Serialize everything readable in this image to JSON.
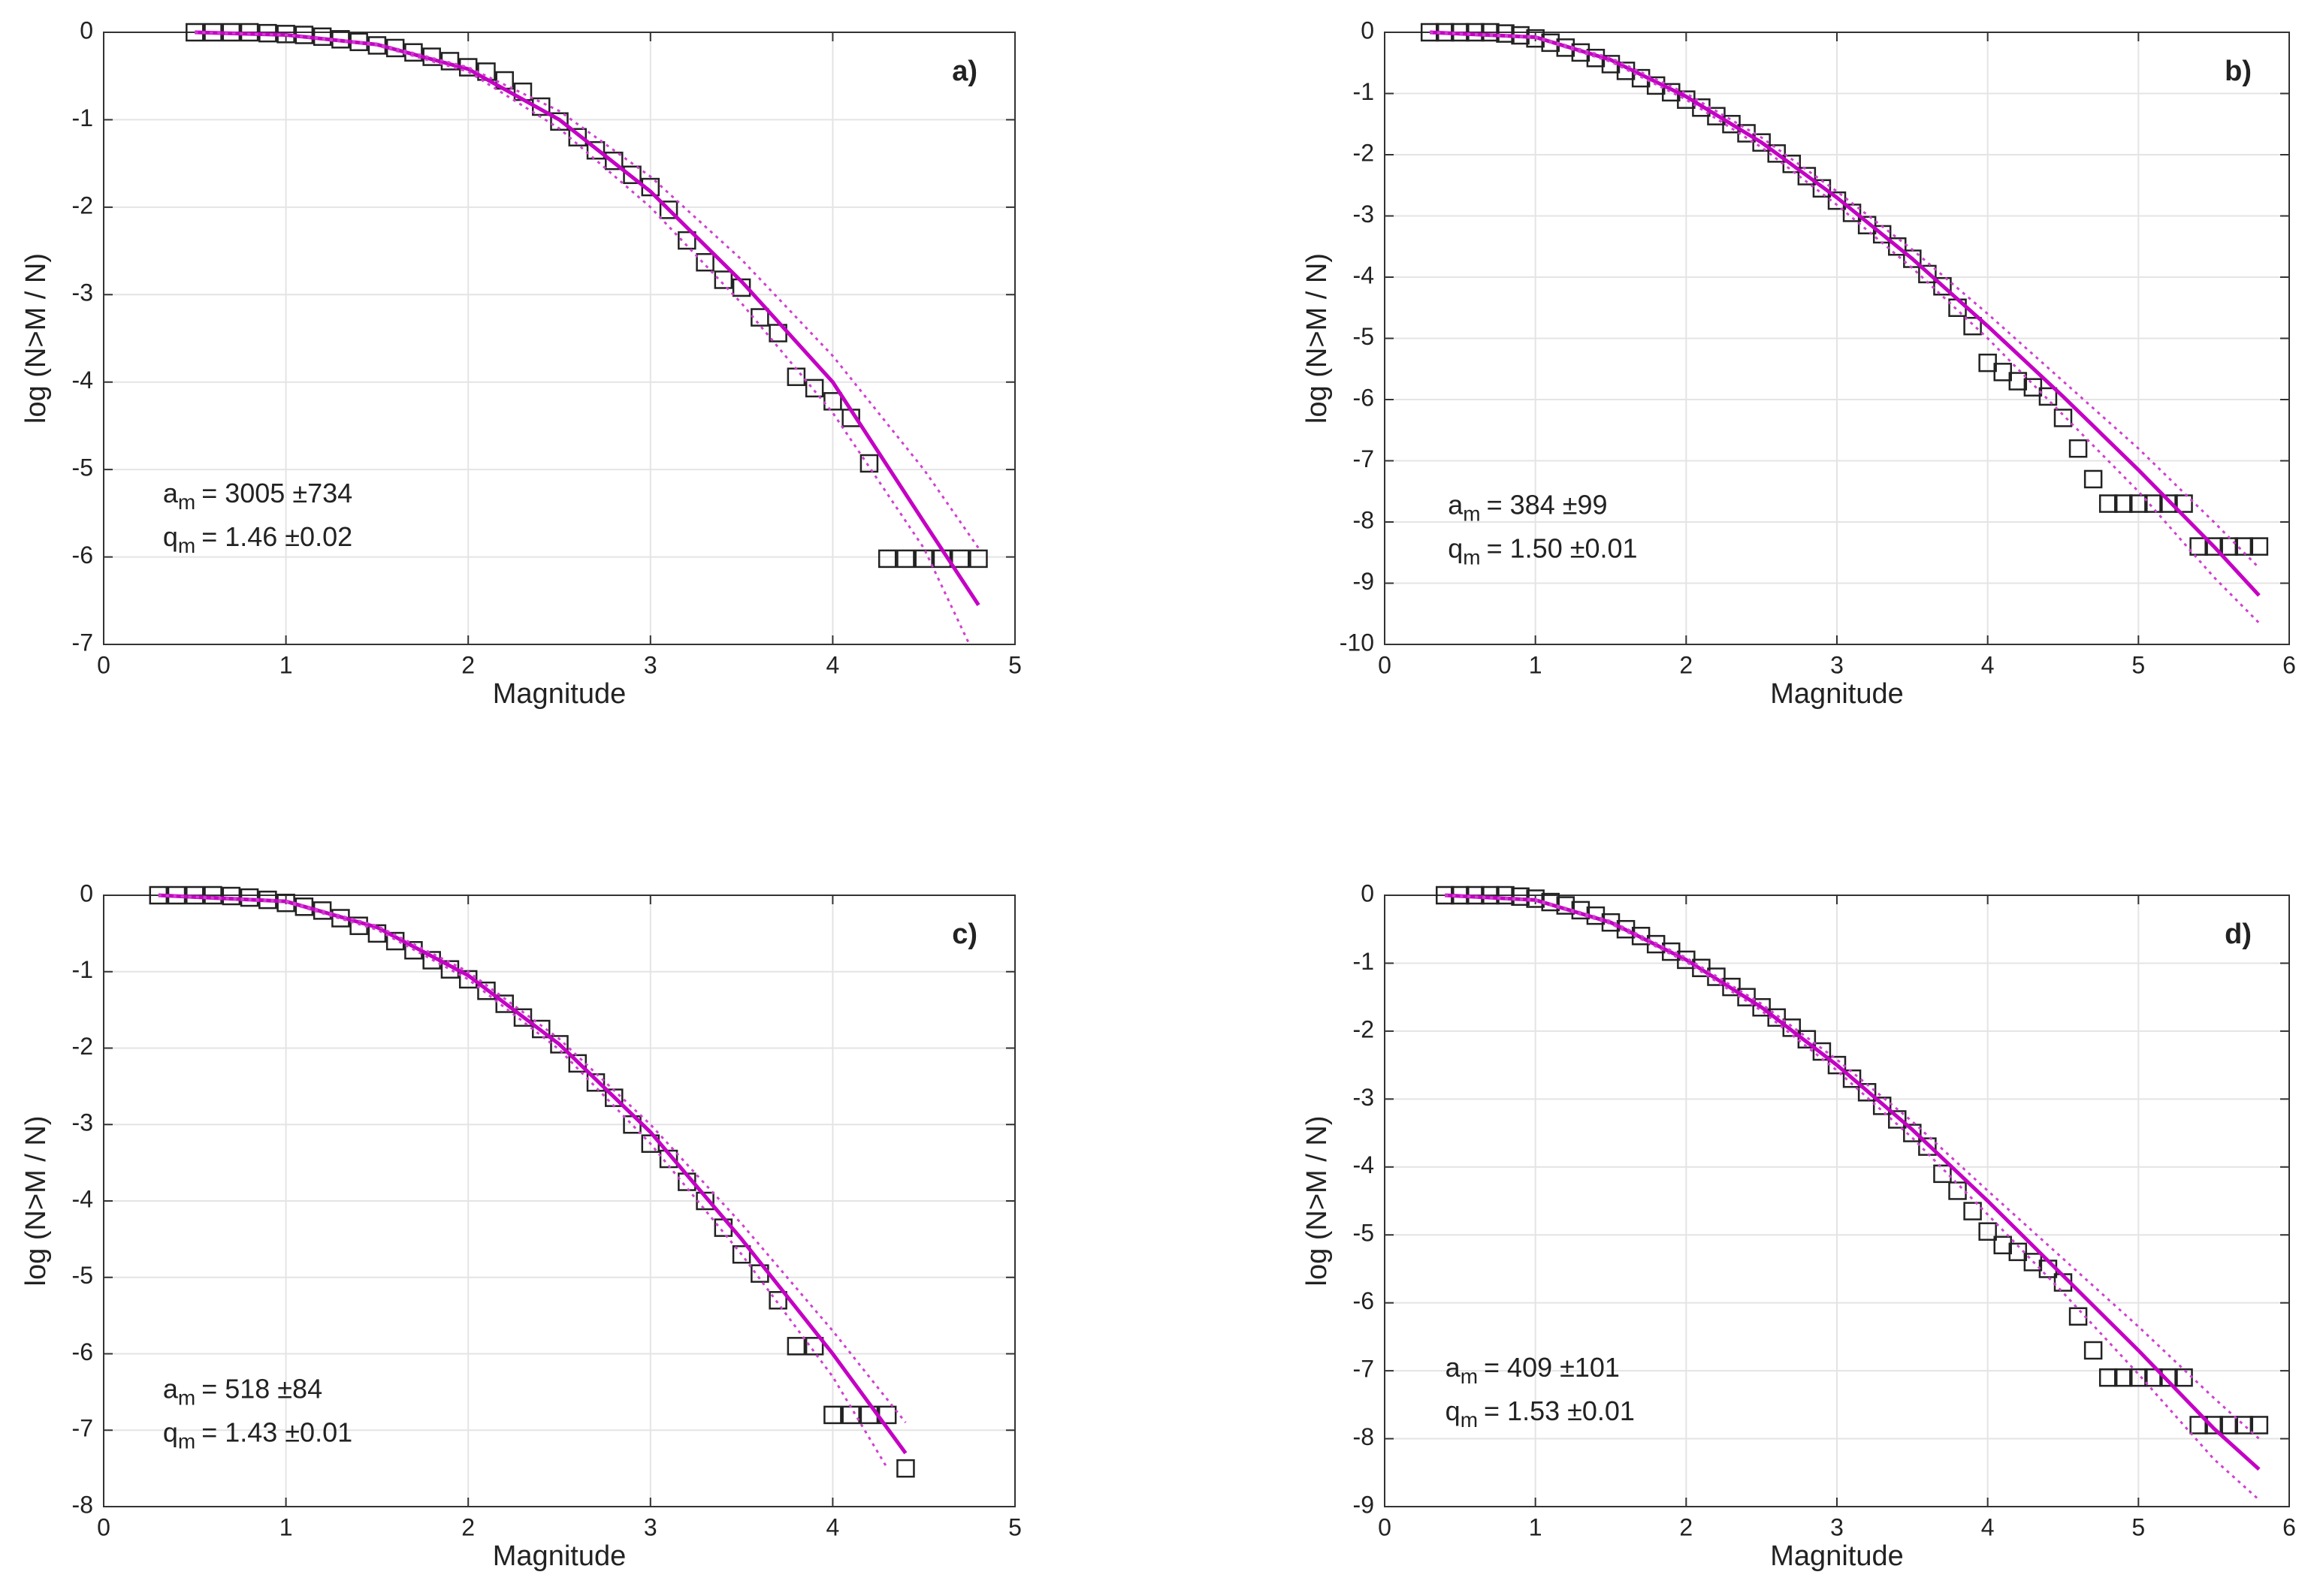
{
  "chart_data": [
    {
      "type": "scatter",
      "panel_label": "a)",
      "xlabel": "Magnitude",
      "ylabel": "log (N>M / N)",
      "xlim": [
        0,
        5
      ],
      "ylim": [
        -7,
        0
      ],
      "xticks": [
        0,
        1,
        2,
        3,
        4,
        5
      ],
      "yticks": [
        0,
        -1,
        -2,
        -3,
        -4,
        -5,
        -6,
        -7
      ],
      "grid": true,
      "annotations": [
        {
          "symbol": "a",
          "subscript": "m",
          "text": "= 3005 ±734"
        },
        {
          "symbol": "q",
          "subscript": "m",
          "text": "= 1.46 ±0.02"
        }
      ],
      "series": [
        {
          "marker": "square",
          "color": "#222222",
          "x": [
            0.5,
            0.6,
            0.7,
            0.8,
            0.9,
            1.0,
            1.1,
            1.2,
            1.3,
            1.4,
            1.5,
            1.6,
            1.7,
            1.8,
            1.9,
            2.0,
            2.1,
            2.2,
            2.3,
            2.4,
            2.5,
            2.6,
            2.7,
            2.8,
            2.9,
            3.0,
            3.1,
            3.2,
            3.3,
            3.4,
            3.5,
            3.6,
            3.7,
            3.8,
            3.9,
            4.0,
            4.1,
            4.2,
            4.3,
            4.4,
            4.5,
            4.6,
            4.7,
            4.8
          ],
          "values": [
            0,
            0,
            0,
            0,
            -0.01,
            -0.02,
            -0.03,
            -0.05,
            -0.08,
            -0.11,
            -0.15,
            -0.18,
            -0.23,
            -0.28,
            -0.33,
            -0.4,
            -0.45,
            -0.55,
            -0.68,
            -0.85,
            -1.02,
            -1.2,
            -1.35,
            -1.47,
            -1.63,
            -1.77,
            -2.03,
            -2.38,
            -2.63,
            -2.83,
            -2.92,
            -3.26,
            -3.44,
            -3.94,
            -4.07,
            -4.22,
            -4.41,
            -4.93,
            -6.02,
            -6.02,
            -6.02,
            -6.02,
            -6.02,
            -6.02
          ]
        },
        {
          "style": "solid",
          "color": "#c400c4",
          "x": [
            0.5,
            1,
            1.5,
            2,
            2.5,
            3,
            3.5,
            4,
            4.5,
            4.8
          ],
          "values": [
            0,
            -0.03,
            -0.14,
            -0.42,
            -1.0,
            -1.82,
            -2.85,
            -4.0,
            -5.6,
            -6.55
          ]
        },
        {
          "style": "dotted",
          "color": "#d040d0",
          "x": [
            0.5,
            1,
            1.5,
            2,
            2.5,
            3,
            3.5,
            4,
            4.5,
            4.8
          ],
          "values": [
            0,
            -0.03,
            -0.13,
            -0.4,
            -0.9,
            -1.65,
            -2.6,
            -3.7,
            -5.0,
            -5.9
          ]
        },
        {
          "style": "dotted",
          "color": "#d040d0",
          "x": [
            0.5,
            1,
            1.5,
            2,
            2.5,
            3,
            3.5,
            4,
            4.5,
            4.75
          ],
          "values": [
            0,
            -0.03,
            -0.15,
            -0.45,
            -1.1,
            -2.0,
            -3.1,
            -4.35,
            -5.9,
            -7
          ]
        }
      ]
    },
    {
      "type": "scatter",
      "panel_label": "b)",
      "xlabel": "Magnitude",
      "ylabel": "log (N>M / N)",
      "xlim": [
        0,
        6
      ],
      "ylim": [
        -10,
        0
      ],
      "xticks": [
        0,
        1,
        2,
        3,
        4,
        5,
        6
      ],
      "yticks": [
        0,
        -1,
        -2,
        -3,
        -4,
        -5,
        -6,
        -7,
        -8,
        -9,
        -10
      ],
      "grid": true,
      "annotations": [
        {
          "symbol": "a",
          "subscript": "m",
          "text": "= 384 ±99"
        },
        {
          "symbol": "q",
          "subscript": "m",
          "text": "= 1.50 ±0.01"
        }
      ],
      "series": [
        {
          "marker": "square",
          "color": "#222222",
          "x": [
            0.3,
            0.4,
            0.5,
            0.6,
            0.7,
            0.8,
            0.9,
            1.0,
            1.1,
            1.2,
            1.3,
            1.4,
            1.5,
            1.6,
            1.7,
            1.8,
            1.9,
            2.0,
            2.1,
            2.2,
            2.3,
            2.4,
            2.5,
            2.6,
            2.7,
            2.8,
            2.9,
            3.0,
            3.1,
            3.2,
            3.3,
            3.4,
            3.5,
            3.6,
            3.7,
            3.8,
            3.9,
            4.0,
            4.1,
            4.2,
            4.3,
            4.4,
            4.5,
            4.6,
            4.7,
            4.8,
            4.9,
            5.0,
            5.1,
            5.2,
            5.3,
            5.4,
            5.5,
            5.6,
            5.7,
            5.8
          ],
          "values": [
            0,
            0,
            0,
            0,
            0,
            -0.02,
            -0.05,
            -0.1,
            -0.17,
            -0.25,
            -0.33,
            -0.42,
            -0.52,
            -0.63,
            -0.75,
            -0.87,
            -0.98,
            -1.1,
            -1.23,
            -1.37,
            -1.5,
            -1.65,
            -1.8,
            -1.98,
            -2.15,
            -2.35,
            -2.55,
            -2.75,
            -2.95,
            -3.15,
            -3.3,
            -3.5,
            -3.7,
            -3.95,
            -4.15,
            -4.5,
            -4.8,
            -5.4,
            -5.55,
            -5.7,
            -5.8,
            -5.95,
            -6.3,
            -6.8,
            -7.3,
            -7.7,
            -7.7,
            -7.7,
            -7.7,
            -7.7,
            -7.7,
            -8.4,
            -8.4,
            -8.4,
            -8.4,
            -8.4
          ]
        },
        {
          "style": "solid",
          "color": "#c400c4",
          "x": [
            0.3,
            1,
            1.5,
            2,
            2.5,
            3,
            3.5,
            4,
            4.5,
            5,
            5.5,
            5.8
          ],
          "values": [
            0,
            -0.08,
            -0.45,
            -1.05,
            -1.8,
            -2.7,
            -3.7,
            -4.8,
            -5.95,
            -7.15,
            -8.4,
            -9.2
          ]
        },
        {
          "style": "dotted",
          "color": "#d040d0",
          "x": [
            0.3,
            1,
            1.5,
            2,
            2.5,
            3,
            3.5,
            4,
            4.5,
            5,
            5.5,
            5.8
          ],
          "values": [
            0,
            -0.07,
            -0.42,
            -1.0,
            -1.72,
            -2.6,
            -3.55,
            -4.6,
            -5.7,
            -6.8,
            -8.0,
            -8.75
          ]
        },
        {
          "style": "dotted",
          "color": "#d040d0",
          "x": [
            0.3,
            1,
            1.5,
            2,
            2.5,
            3,
            3.5,
            4,
            4.5,
            5,
            5.5,
            5.8
          ],
          "values": [
            0,
            -0.09,
            -0.48,
            -1.1,
            -1.88,
            -2.82,
            -3.85,
            -5.0,
            -6.25,
            -7.5,
            -8.9,
            -9.65
          ]
        }
      ]
    },
    {
      "type": "scatter",
      "panel_label": "c)",
      "xlabel": "Magnitude",
      "ylabel": "log (N>M / N)",
      "xlim": [
        0,
        5
      ],
      "ylim": [
        -8,
        0
      ],
      "xticks": [
        0,
        1,
        2,
        3,
        4,
        5
      ],
      "yticks": [
        0,
        -1,
        -2,
        -3,
        -4,
        -5,
        -6,
        -7,
        -8
      ],
      "grid": true,
      "annotations": [
        {
          "symbol": "a",
          "subscript": "m",
          "text": "= 518 ±84"
        },
        {
          "symbol": "q",
          "subscript": "m",
          "text": "= 1.43 ±0.01"
        }
      ],
      "series": [
        {
          "marker": "square",
          "color": "#222222",
          "x": [
            0.3,
            0.4,
            0.5,
            0.6,
            0.7,
            0.8,
            0.9,
            1.0,
            1.1,
            1.2,
            1.3,
            1.4,
            1.5,
            1.6,
            1.7,
            1.8,
            1.9,
            2.0,
            2.1,
            2.2,
            2.3,
            2.4,
            2.5,
            2.6,
            2.7,
            2.8,
            2.9,
            3.0,
            3.1,
            3.2,
            3.3,
            3.4,
            3.5,
            3.6,
            3.7,
            3.8,
            3.9,
            4.0,
            4.1,
            4.2,
            4.3,
            4.4
          ],
          "values": [
            0,
            0,
            0,
            0,
            -0.01,
            -0.03,
            -0.06,
            -0.1,
            -0.15,
            -0.2,
            -0.3,
            -0.4,
            -0.5,
            -0.6,
            -0.72,
            -0.85,
            -0.97,
            -1.1,
            -1.25,
            -1.42,
            -1.6,
            -1.75,
            -1.95,
            -2.2,
            -2.45,
            -2.65,
            -3.0,
            -3.25,
            -3.45,
            -3.75,
            -4.0,
            -4.35,
            -4.7,
            -4.95,
            -5.3,
            -5.9,
            -5.9,
            -6.8,
            -6.8,
            -6.8,
            -6.8,
            -7.5
          ]
        },
        {
          "style": "solid",
          "color": "#c400c4",
          "x": [
            0.3,
            1,
            1.5,
            2,
            2.5,
            3,
            3.5,
            4,
            4.4
          ],
          "values": [
            0,
            -0.08,
            -0.42,
            -1.05,
            -1.95,
            -3.1,
            -4.5,
            -6.0,
            -7.3
          ]
        },
        {
          "style": "dotted",
          "color": "#d040d0",
          "x": [
            0.3,
            1,
            1.5,
            2,
            2.5,
            3,
            3.5,
            4,
            4.4
          ],
          "values": [
            0,
            -0.07,
            -0.4,
            -1.0,
            -1.88,
            -3.0,
            -4.3,
            -5.7,
            -6.9
          ]
        },
        {
          "style": "dotted",
          "color": "#d040d0",
          "x": [
            0.3,
            1,
            1.5,
            2,
            2.5,
            3,
            3.5,
            4,
            4.3
          ],
          "values": [
            0,
            -0.09,
            -0.45,
            -1.1,
            -2.02,
            -3.25,
            -4.7,
            -6.3,
            -7.5
          ]
        }
      ]
    },
    {
      "type": "scatter",
      "panel_label": "d)",
      "xlabel": "Magnitude",
      "ylabel": "log (N>M / N)",
      "xlim": [
        0,
        6
      ],
      "ylim": [
        -9,
        0
      ],
      "xticks": [
        0,
        1,
        2,
        3,
        4,
        5,
        6
      ],
      "yticks": [
        0,
        -1,
        -2,
        -3,
        -4,
        -5,
        -6,
        -7,
        -8,
        -9
      ],
      "grid": true,
      "annotations": [
        {
          "symbol": "a",
          "subscript": "m",
          "text": "= 409 ±101"
        },
        {
          "symbol": "q",
          "subscript": "m",
          "text": "= 1.53 ±0.01"
        }
      ],
      "series": [
        {
          "marker": "square",
          "color": "#222222",
          "x": [
            0.4,
            0.5,
            0.6,
            0.7,
            0.8,
            0.9,
            1.0,
            1.1,
            1.2,
            1.3,
            1.4,
            1.5,
            1.6,
            1.7,
            1.8,
            1.9,
            2.0,
            2.1,
            2.2,
            2.3,
            2.4,
            2.5,
            2.6,
            2.7,
            2.8,
            2.9,
            3.0,
            3.1,
            3.2,
            3.3,
            3.4,
            3.5,
            3.6,
            3.7,
            3.8,
            3.9,
            4.0,
            4.1,
            4.2,
            4.3,
            4.4,
            4.5,
            4.6,
            4.7,
            4.8,
            4.9,
            5.0,
            5.1,
            5.2,
            5.3,
            5.4,
            5.5,
            5.6,
            5.7,
            5.8
          ],
          "values": [
            0,
            0,
            0,
            0,
            0,
            -0.02,
            -0.05,
            -0.1,
            -0.15,
            -0.22,
            -0.3,
            -0.4,
            -0.5,
            -0.6,
            -0.72,
            -0.83,
            -0.95,
            -1.07,
            -1.2,
            -1.35,
            -1.5,
            -1.65,
            -1.8,
            -1.95,
            -2.12,
            -2.3,
            -2.5,
            -2.7,
            -2.9,
            -3.1,
            -3.3,
            -3.5,
            -3.7,
            -4.1,
            -4.35,
            -4.65,
            -4.95,
            -5.15,
            -5.25,
            -5.4,
            -5.5,
            -5.7,
            -6.2,
            -6.7,
            -7.1,
            -7.1,
            -7.1,
            -7.1,
            -7.1,
            -7.1,
            -7.8,
            -7.8,
            -7.8,
            -7.8,
            -7.8
          ]
        },
        {
          "style": "solid",
          "color": "#c400c4",
          "x": [
            0.4,
            1,
            1.5,
            2,
            2.5,
            3,
            3.5,
            4,
            4.5,
            5,
            5.5,
            5.8
          ],
          "values": [
            0,
            -0.07,
            -0.4,
            -0.95,
            -1.65,
            -2.5,
            -3.45,
            -4.5,
            -5.6,
            -6.7,
            -7.85,
            -8.45
          ]
        },
        {
          "style": "dotted",
          "color": "#d040d0",
          "x": [
            0.4,
            1,
            1.5,
            2,
            2.5,
            3,
            3.5,
            4,
            4.5,
            5,
            5.5,
            5.8
          ],
          "values": [
            0,
            -0.06,
            -0.38,
            -0.92,
            -1.6,
            -2.42,
            -3.33,
            -4.35,
            -5.35,
            -6.35,
            -7.4,
            -8.0
          ]
        },
        {
          "style": "dotted",
          "color": "#d040d0",
          "x": [
            0.4,
            1,
            1.5,
            2,
            2.5,
            3,
            3.5,
            4,
            4.5,
            5,
            5.5,
            5.8
          ],
          "values": [
            0,
            -0.08,
            -0.42,
            -0.98,
            -1.7,
            -2.58,
            -3.57,
            -4.7,
            -5.85,
            -7.05,
            -8.3,
            -8.9
          ]
        }
      ]
    }
  ]
}
